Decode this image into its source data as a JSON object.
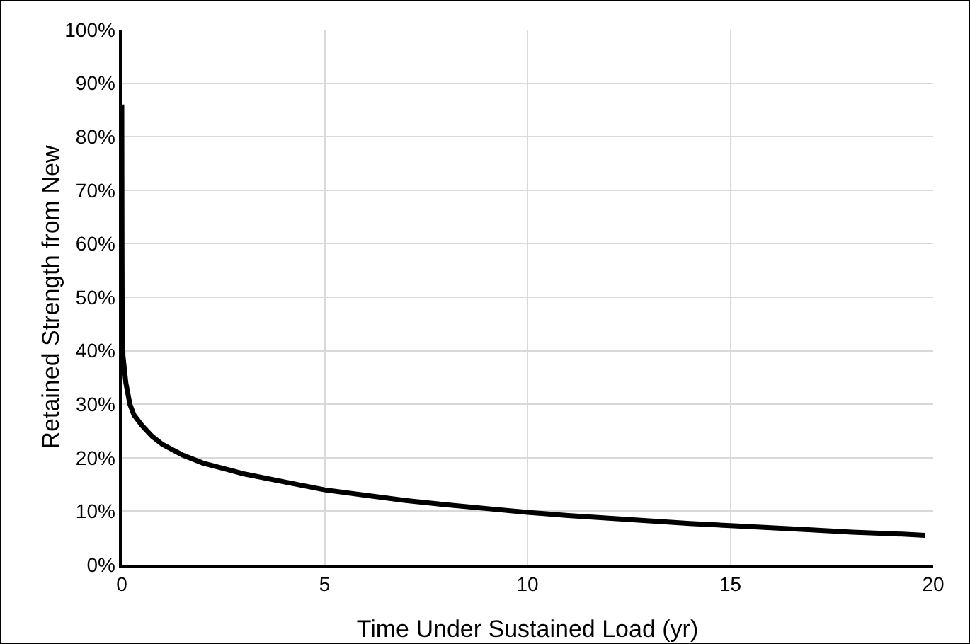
{
  "chart_data": {
    "type": "line",
    "xlabel": "Time Under Sustained Load (yr)",
    "ylabel": "Retained Strength from New",
    "x": [
      0,
      0.005,
      0.01,
      0.03,
      0.1,
      0.2,
      0.3,
      0.5,
      0.75,
      1,
      1.5,
      2,
      2.5,
      3,
      4,
      5,
      6,
      7,
      8,
      9,
      10,
      11,
      12,
      13,
      14,
      15,
      16,
      17,
      18,
      19,
      19.8
    ],
    "series": [
      {
        "color": "#000000",
        "values": [
          86,
          60,
          45,
          39,
          34,
          30,
          28,
          26,
          24,
          22.5,
          20.5,
          19,
          18,
          17,
          15.5,
          14,
          13,
          12,
          11.2,
          10.5,
          9.8,
          9.2,
          8.7,
          8.2,
          7.7,
          7.3,
          6.9,
          6.5,
          6.1,
          5.8,
          5.5
        ]
      }
    ],
    "xlim": [
      0,
      20
    ],
    "xticks": [
      0,
      5,
      10,
      15,
      20
    ],
    "ylim": [
      0,
      100
    ],
    "yticks": [
      {
        "value": 0,
        "label": "0%"
      },
      {
        "value": 10,
        "label": "10%"
      },
      {
        "value": 20,
        "label": "20%"
      },
      {
        "value": 30,
        "label": "30%"
      },
      {
        "value": 40,
        "label": "40%"
      },
      {
        "value": 50,
        "label": "50%"
      },
      {
        "value": 60,
        "label": "60%"
      },
      {
        "value": 70,
        "label": "70%"
      },
      {
        "value": 80,
        "label": "80%"
      },
      {
        "value": 90,
        "label": "90%"
      },
      {
        "value": 100,
        "label": "100%"
      }
    ],
    "grid": true,
    "marker": "none",
    "line_style": "solid"
  }
}
